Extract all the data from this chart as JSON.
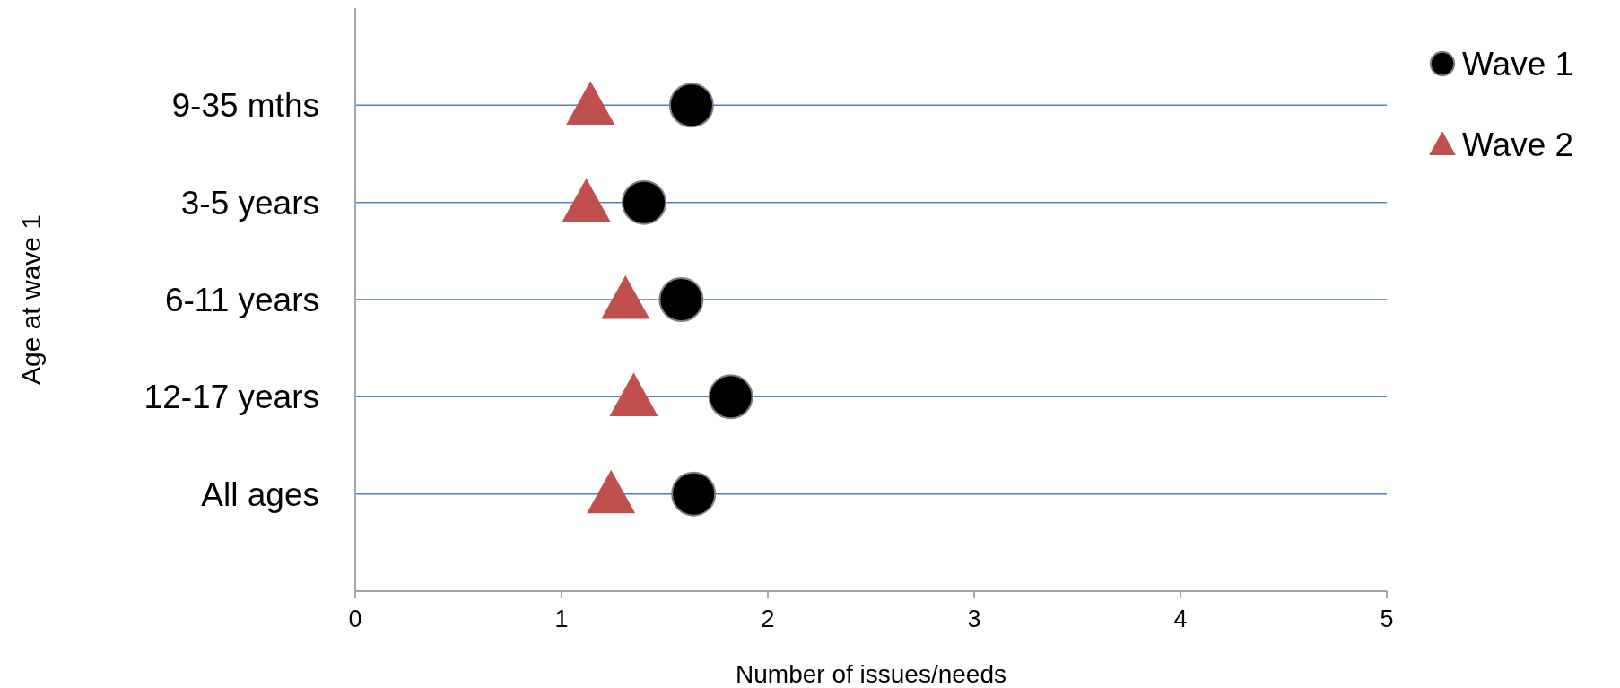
{
  "chart_data": {
    "type": "scatter",
    "orientation": "horizontal",
    "ylabel": "Age at wave 1",
    "xlabel": "Number of issues/needs",
    "categories": [
      "9-35 mths",
      "3-5 years",
      "6-11 years",
      "12-17 years",
      "All ages"
    ],
    "series": [
      {
        "name": "Wave 1",
        "color": "#000000",
        "marker": "circle",
        "values": [
          1.63,
          1.4,
          1.58,
          1.82,
          1.64
        ]
      },
      {
        "name": "Wave 2",
        "color": "#c0504d",
        "marker": "triangle",
        "values": [
          1.14,
          1.12,
          1.31,
          1.35,
          1.24
        ]
      }
    ],
    "xlim": [
      0,
      5
    ],
    "xticks": [
      0,
      1,
      2,
      3,
      4,
      5
    ],
    "grid": "y",
    "legend": "top right"
  }
}
